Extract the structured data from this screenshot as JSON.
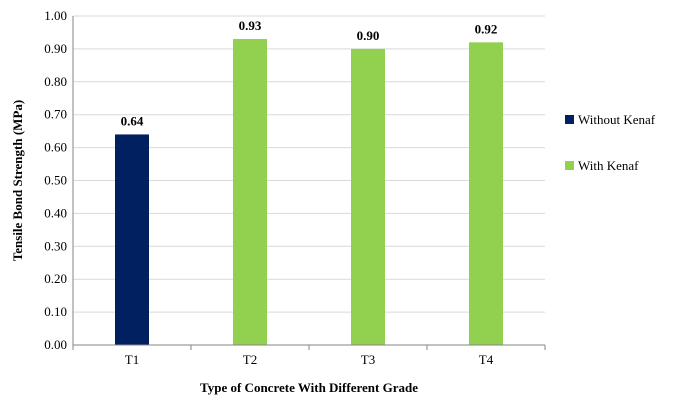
{
  "chart_data": {
    "type": "bar",
    "categories": [
      "T1",
      "T2",
      "T3",
      "T4"
    ],
    "series": [
      {
        "name": "Without Kenaf",
        "color": "#002060",
        "values": [
          0.64,
          null,
          null,
          null
        ]
      },
      {
        "name": "With Kenaf",
        "color": "#92D050",
        "values": [
          null,
          0.93,
          0.9,
          0.92
        ]
      }
    ],
    "data_labels": [
      "0.64",
      "0.93",
      "0.90",
      "0.92"
    ],
    "title": "",
    "xlabel": "Type of Concrete With Different Grade",
    "ylabel": "Tensile Bond Strength (MPa)",
    "ylim": [
      0,
      1.0
    ],
    "yticks": [
      "0.00",
      "0.10",
      "0.20",
      "0.30",
      "0.40",
      "0.50",
      "0.60",
      "0.70",
      "0.80",
      "0.90",
      "1.00"
    ],
    "grid": true,
    "legend_position": "right"
  }
}
